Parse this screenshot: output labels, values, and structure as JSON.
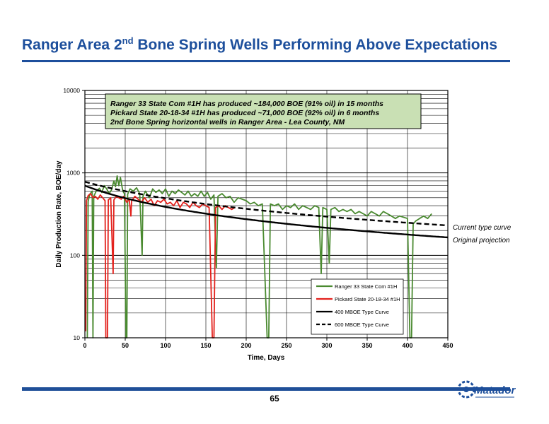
{
  "slide": {
    "title_main": "Ranger Area 2",
    "title_sup": "nd",
    "title_rest": " Bone Spring Wells Performing Above Expectations",
    "page_number": "65",
    "logo_text": "Matador",
    "brand_color": "#1d4f9c"
  },
  "chart_data": {
    "type": "line",
    "xlabel": "Time, Days",
    "ylabel": "Daily Production Rate, BOE/day",
    "xlim": [
      0,
      450
    ],
    "ylim": [
      10,
      10000
    ],
    "y_scale": "log",
    "grid": true,
    "x_ticks": [
      "0",
      "50",
      "100",
      "150",
      "200",
      "250",
      "300",
      "350",
      "400",
      "450"
    ],
    "y_ticks": [
      "10000",
      "1000",
      "100",
      "10"
    ],
    "y_tick_values": [
      10000,
      1000,
      100,
      10
    ],
    "legend_position": "bottom-right",
    "annotation_lines": [
      "Ranger 33 State Com #1H has produced ~184,000 BOE (91% oil) in 15 months",
      "Pickard State 20-18-34 #1H has produced ~71,000 BOE (92% oil) in 6 months",
      "2nd Bone Spring horizontal wells in Ranger Area -  Lea County, NM"
    ],
    "side_labels": [
      "Current type curve",
      "Original projection"
    ],
    "series": [
      {
        "name": "Ranger 33 State Com #1H",
        "color": "#4a8a30",
        "style": "solid",
        "points": [
          [
            3,
            8
          ],
          [
            4,
            450
          ],
          [
            6,
            550
          ],
          [
            9,
            600
          ],
          [
            10,
            8
          ],
          [
            11,
            520
          ],
          [
            14,
            600
          ],
          [
            18,
            650
          ],
          [
            21,
            580
          ],
          [
            24,
            700
          ],
          [
            27,
            640
          ],
          [
            30,
            560
          ],
          [
            33,
            620
          ],
          [
            36,
            800
          ],
          [
            38,
            680
          ],
          [
            40,
            920
          ],
          [
            42,
            700
          ],
          [
            44,
            880
          ],
          [
            47,
            600
          ],
          [
            49,
            560
          ],
          [
            51,
            8
          ],
          [
            52,
            8
          ],
          [
            53,
            550
          ],
          [
            56,
            640
          ],
          [
            60,
            600
          ],
          [
            64,
            660
          ],
          [
            68,
            560
          ],
          [
            71,
            100
          ],
          [
            72,
            520
          ],
          [
            75,
            600
          ],
          [
            80,
            500
          ],
          [
            84,
            640
          ],
          [
            88,
            580
          ],
          [
            92,
            620
          ],
          [
            96,
            560
          ],
          [
            100,
            640
          ],
          [
            104,
            520
          ],
          [
            108,
            600
          ],
          [
            112,
            560
          ],
          [
            116,
            620
          ],
          [
            120,
            580
          ],
          [
            124,
            540
          ],
          [
            128,
            600
          ],
          [
            132,
            520
          ],
          [
            136,
            560
          ],
          [
            140,
            520
          ],
          [
            144,
            600
          ],
          [
            148,
            520
          ],
          [
            152,
            580
          ],
          [
            156,
            480
          ],
          [
            160,
            540
          ],
          [
            163,
            70
          ],
          [
            165,
            520
          ],
          [
            170,
            560
          ],
          [
            175,
            500
          ],
          [
            180,
            520
          ],
          [
            185,
            440
          ],
          [
            190,
            500
          ],
          [
            195,
            480
          ],
          [
            200,
            460
          ],
          [
            205,
            420
          ],
          [
            210,
            440
          ],
          [
            215,
            400
          ],
          [
            220,
            420
          ],
          [
            226,
            8
          ],
          [
            228,
            8
          ],
          [
            230,
            420
          ],
          [
            235,
            400
          ],
          [
            240,
            420
          ],
          [
            245,
            360
          ],
          [
            250,
            400
          ],
          [
            255,
            380
          ],
          [
            260,
            420
          ],
          [
            265,
            360
          ],
          [
            270,
            400
          ],
          [
            275,
            380
          ],
          [
            280,
            360
          ],
          [
            285,
            400
          ],
          [
            290,
            380
          ],
          [
            293,
            60
          ],
          [
            295,
            380
          ],
          [
            300,
            360
          ],
          [
            303,
            80
          ],
          [
            305,
            360
          ],
          [
            310,
            380
          ],
          [
            315,
            340
          ],
          [
            320,
            360
          ],
          [
            325,
            340
          ],
          [
            330,
            360
          ],
          [
            335,
            320
          ],
          [
            340,
            340
          ],
          [
            345,
            320
          ],
          [
            350,
            300
          ],
          [
            355,
            340
          ],
          [
            360,
            320
          ],
          [
            365,
            300
          ],
          [
            370,
            340
          ],
          [
            375,
            320
          ],
          [
            380,
            300
          ],
          [
            385,
            280
          ],
          [
            390,
            300
          ],
          [
            395,
            290
          ],
          [
            400,
            280
          ],
          [
            403,
            8
          ],
          [
            405,
            8
          ],
          [
            407,
            240
          ],
          [
            410,
            260
          ],
          [
            415,
            280
          ],
          [
            420,
            300
          ],
          [
            425,
            280
          ],
          [
            430,
            320
          ]
        ]
      },
      {
        "name": "Pickard State 20-18-34 #1H",
        "color": "#e3211c",
        "style": "solid",
        "points": [
          [
            1,
            12
          ],
          [
            2,
            460
          ],
          [
            4,
            530
          ],
          [
            7,
            560
          ],
          [
            10,
            500
          ],
          [
            13,
            520
          ],
          [
            16,
            480
          ],
          [
            19,
            540
          ],
          [
            22,
            500
          ],
          [
            25,
            460
          ],
          [
            26,
            10
          ],
          [
            28,
            10
          ],
          [
            29,
            470
          ],
          [
            32,
            500
          ],
          [
            34,
            120
          ],
          [
            35,
            60
          ],
          [
            36,
            470
          ],
          [
            39,
            520
          ],
          [
            42,
            500
          ],
          [
            45,
            480
          ],
          [
            48,
            520
          ],
          [
            52,
            440
          ],
          [
            55,
            480
          ],
          [
            57,
            300
          ],
          [
            58,
            460
          ],
          [
            62,
            520
          ],
          [
            66,
            480
          ],
          [
            70,
            440
          ],
          [
            74,
            500
          ],
          [
            78,
            440
          ],
          [
            82,
            480
          ],
          [
            86,
            400
          ],
          [
            90,
            460
          ],
          [
            94,
            440
          ],
          [
            98,
            480
          ],
          [
            102,
            420
          ],
          [
            106,
            440
          ],
          [
            110,
            400
          ],
          [
            114,
            460
          ],
          [
            118,
            380
          ],
          [
            122,
            440
          ],
          [
            126,
            420
          ],
          [
            130,
            380
          ],
          [
            134,
            440
          ],
          [
            138,
            400
          ],
          [
            142,
            380
          ],
          [
            146,
            420
          ],
          [
            150,
            400
          ],
          [
            154,
            380
          ],
          [
            158,
            10
          ],
          [
            160,
            10
          ],
          [
            162,
            380
          ],
          [
            166,
            400
          ],
          [
            170,
            360
          ],
          [
            174,
            400
          ],
          [
            178,
            380
          ],
          [
            182,
            360
          ],
          [
            186,
            380
          ]
        ]
      },
      {
        "name": "400 MBOE Type Curve",
        "color": "#000000",
        "style": "solid",
        "qi": 700,
        "di": 0.00864,
        "b": 1.2,
        "x_range": [
          0,
          450
        ]
      },
      {
        "name": "600 MBOE Type Curve",
        "color": "#000000",
        "style": "dashed",
        "qi": 780,
        "di": 0.00614,
        "b": 1.2,
        "x_range": [
          0,
          450
        ]
      }
    ]
  }
}
